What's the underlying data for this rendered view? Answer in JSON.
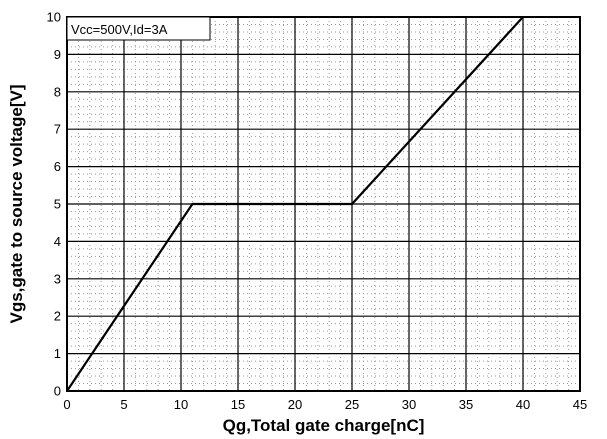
{
  "chart_data": {
    "type": "line",
    "xlabel": "Qg,Total gate charge[nC]",
    "ylabel": "Vgs,gate to source voltage[V]",
    "xlim": [
      0,
      45
    ],
    "ylim": [
      0,
      10
    ],
    "x_ticks": [
      "0",
      "5",
      "10",
      "15",
      "20",
      "25",
      "30",
      "35",
      "40",
      "45"
    ],
    "y_ticks": [
      "0",
      "1",
      "2",
      "3",
      "4",
      "5",
      "6",
      "7",
      "8",
      "9",
      "10"
    ],
    "grid": true,
    "annotation": "Vcc=500V,Id=3A",
    "series": [
      {
        "x": [
          0,
          11,
          25,
          40
        ],
        "y": [
          0,
          5,
          5,
          10
        ]
      }
    ]
  }
}
